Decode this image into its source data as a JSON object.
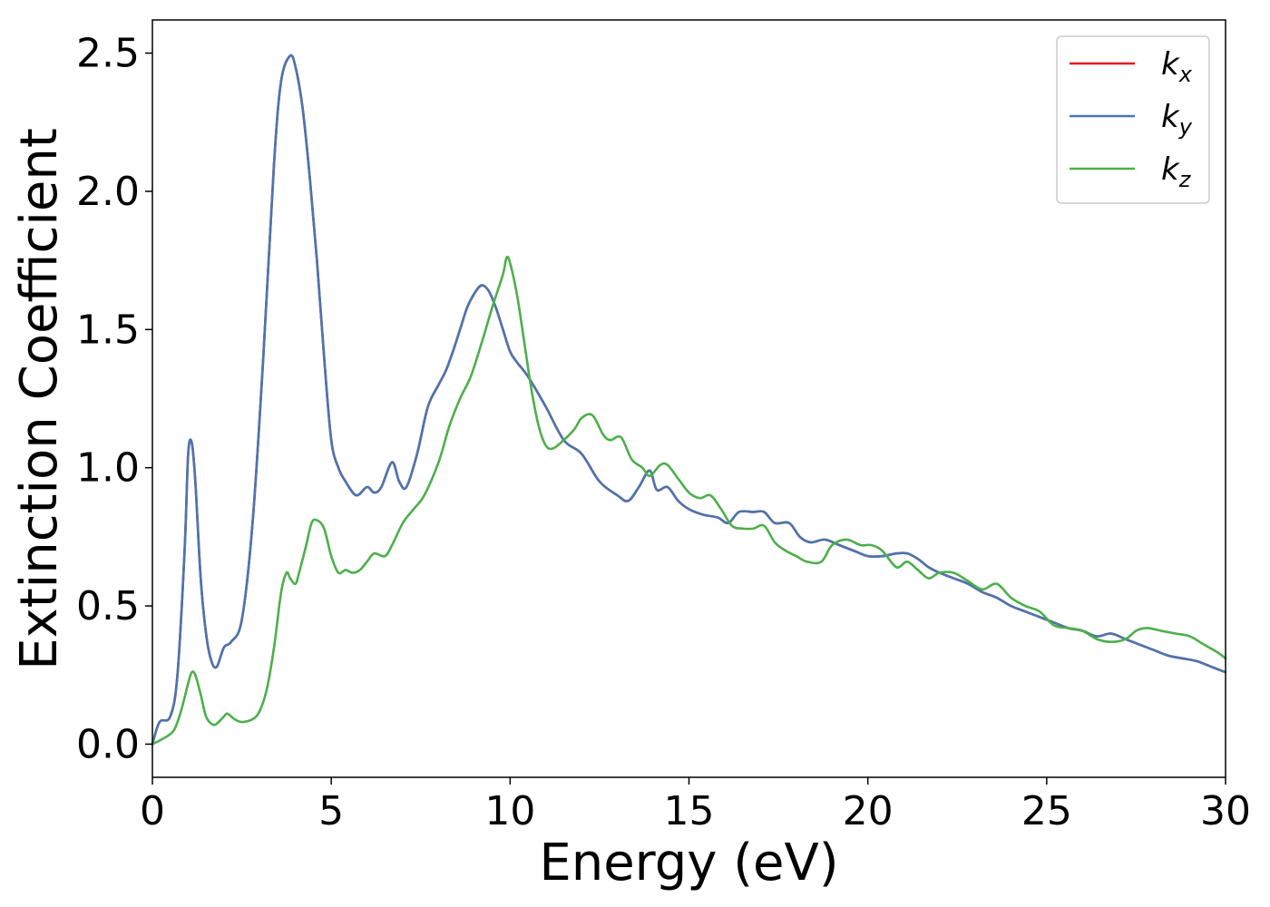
{
  "chart_data": {
    "type": "line",
    "title": "",
    "xlabel": "Energy (eV)",
    "ylabel": "Extinction Coefficient",
    "xlim": [
      0,
      30
    ],
    "ylim": [
      -0.12,
      2.62
    ],
    "xticks": [
      0,
      5,
      10,
      15,
      20,
      25,
      30
    ],
    "xtick_labels": [
      "0",
      "5",
      "10",
      "15",
      "20",
      "25",
      "30"
    ],
    "yticks": [
      0.0,
      0.5,
      1.0,
      1.5,
      2.0,
      2.5
    ],
    "ytick_labels": [
      "0.0",
      "0.5",
      "1.0",
      "1.5",
      "2.0",
      "2.5"
    ],
    "grid": false,
    "legend_position": "top-right",
    "series": [
      {
        "name": "k_x",
        "label_base": "k",
        "label_sub": "x",
        "color": "#e41a1c",
        "x": [
          0,
          0.2,
          0.5,
          0.7,
          0.9,
          1.0,
          1.1,
          1.2,
          1.35,
          1.5,
          1.65,
          1.8,
          2.0,
          2.2,
          2.5,
          2.8,
          3.1,
          3.4,
          3.6,
          3.85,
          4.0,
          4.2,
          4.4,
          4.6,
          4.8,
          5.0,
          5.2,
          5.4,
          5.7,
          6.0,
          6.2,
          6.4,
          6.7,
          6.9,
          7.1,
          7.4,
          7.7,
          8.0,
          8.2,
          8.4,
          8.6,
          8.8,
          9.0,
          9.2,
          9.4,
          9.6,
          9.8,
          10.0,
          10.2,
          10.5,
          11.0,
          11.5,
          12.0,
          12.5,
          13.0,
          13.3,
          13.6,
          13.9,
          14.1,
          14.4,
          14.7,
          15.0,
          15.4,
          15.8,
          16.1,
          16.4,
          16.8,
          17.1,
          17.4,
          17.8,
          18.1,
          18.4,
          18.8,
          19.2,
          19.6,
          20.0,
          20.4,
          20.8,
          21.1,
          21.4,
          21.7,
          22.0,
          22.4,
          22.8,
          23.2,
          23.6,
          24.0,
          24.4,
          24.8,
          25.2,
          25.6,
          26.0,
          26.4,
          26.8,
          27.2,
          27.6,
          28.0,
          28.4,
          28.8,
          29.2,
          29.6,
          30.0
        ],
        "y": [
          0.0,
          0.08,
          0.1,
          0.25,
          0.7,
          1.05,
          1.09,
          0.95,
          0.6,
          0.4,
          0.3,
          0.28,
          0.35,
          0.37,
          0.45,
          0.8,
          1.4,
          2.1,
          2.4,
          2.49,
          2.45,
          2.3,
          2.05,
          1.75,
          1.4,
          1.1,
          1.0,
          0.95,
          0.9,
          0.93,
          0.91,
          0.93,
          1.02,
          0.95,
          0.93,
          1.05,
          1.22,
          1.3,
          1.35,
          1.42,
          1.5,
          1.58,
          1.63,
          1.66,
          1.64,
          1.58,
          1.5,
          1.42,
          1.38,
          1.33,
          1.22,
          1.1,
          1.05,
          0.95,
          0.9,
          0.88,
          0.93,
          0.99,
          0.92,
          0.93,
          0.88,
          0.85,
          0.83,
          0.82,
          0.8,
          0.84,
          0.84,
          0.84,
          0.8,
          0.8,
          0.75,
          0.73,
          0.74,
          0.72,
          0.7,
          0.68,
          0.68,
          0.69,
          0.69,
          0.67,
          0.64,
          0.62,
          0.6,
          0.58,
          0.55,
          0.53,
          0.5,
          0.48,
          0.46,
          0.44,
          0.42,
          0.41,
          0.39,
          0.4,
          0.38,
          0.36,
          0.34,
          0.32,
          0.31,
          0.3,
          0.28,
          0.26
        ]
      },
      {
        "name": "k_y",
        "label_base": "k",
        "label_sub": "y",
        "color": "#4a76af",
        "x": [
          0,
          0.2,
          0.5,
          0.7,
          0.9,
          1.0,
          1.1,
          1.2,
          1.35,
          1.5,
          1.65,
          1.8,
          2.0,
          2.2,
          2.5,
          2.8,
          3.1,
          3.4,
          3.6,
          3.85,
          4.0,
          4.2,
          4.4,
          4.6,
          4.8,
          5.0,
          5.2,
          5.4,
          5.7,
          6.0,
          6.2,
          6.4,
          6.7,
          6.9,
          7.1,
          7.4,
          7.7,
          8.0,
          8.2,
          8.4,
          8.6,
          8.8,
          9.0,
          9.2,
          9.4,
          9.6,
          9.8,
          10.0,
          10.2,
          10.5,
          11.0,
          11.5,
          12.0,
          12.5,
          13.0,
          13.3,
          13.6,
          13.9,
          14.1,
          14.4,
          14.7,
          15.0,
          15.4,
          15.8,
          16.1,
          16.4,
          16.8,
          17.1,
          17.4,
          17.8,
          18.1,
          18.4,
          18.8,
          19.2,
          19.6,
          20.0,
          20.4,
          20.8,
          21.1,
          21.4,
          21.7,
          22.0,
          22.4,
          22.8,
          23.2,
          23.6,
          24.0,
          24.4,
          24.8,
          25.2,
          25.6,
          26.0,
          26.4,
          26.8,
          27.2,
          27.6,
          28.0,
          28.4,
          28.8,
          29.2,
          29.6,
          30.0
        ],
        "y": [
          0.0,
          0.08,
          0.1,
          0.25,
          0.7,
          1.05,
          1.09,
          0.95,
          0.6,
          0.4,
          0.3,
          0.28,
          0.35,
          0.37,
          0.45,
          0.8,
          1.4,
          2.1,
          2.4,
          2.49,
          2.45,
          2.3,
          2.05,
          1.75,
          1.4,
          1.1,
          1.0,
          0.95,
          0.9,
          0.93,
          0.91,
          0.93,
          1.02,
          0.95,
          0.93,
          1.05,
          1.22,
          1.3,
          1.35,
          1.42,
          1.5,
          1.58,
          1.63,
          1.66,
          1.64,
          1.58,
          1.5,
          1.42,
          1.38,
          1.33,
          1.22,
          1.1,
          1.05,
          0.95,
          0.9,
          0.88,
          0.93,
          0.99,
          0.92,
          0.93,
          0.88,
          0.85,
          0.83,
          0.82,
          0.8,
          0.84,
          0.84,
          0.84,
          0.8,
          0.8,
          0.75,
          0.73,
          0.74,
          0.72,
          0.7,
          0.68,
          0.68,
          0.69,
          0.69,
          0.67,
          0.64,
          0.62,
          0.6,
          0.58,
          0.55,
          0.53,
          0.5,
          0.48,
          0.46,
          0.44,
          0.42,
          0.41,
          0.39,
          0.4,
          0.38,
          0.36,
          0.34,
          0.32,
          0.31,
          0.3,
          0.28,
          0.26
        ]
      },
      {
        "name": "k_z",
        "label_base": "k",
        "label_sub": "z",
        "color": "#4daf4a",
        "x": [
          0,
          0.3,
          0.6,
          0.8,
          1.0,
          1.1,
          1.2,
          1.35,
          1.5,
          1.7,
          1.85,
          2.0,
          2.1,
          2.3,
          2.5,
          2.8,
          3.0,
          3.2,
          3.4,
          3.6,
          3.75,
          3.85,
          4.0,
          4.1,
          4.3,
          4.45,
          4.6,
          4.8,
          5.0,
          5.2,
          5.4,
          5.6,
          5.8,
          6.0,
          6.2,
          6.5,
          6.7,
          7.0,
          7.3,
          7.6,
          8.0,
          8.3,
          8.6,
          8.9,
          9.2,
          9.5,
          9.8,
          9.9,
          10.0,
          10.2,
          10.4,
          10.6,
          10.8,
          11.0,
          11.2,
          11.5,
          11.8,
          12.0,
          12.3,
          12.6,
          12.8,
          13.1,
          13.4,
          13.7,
          13.9,
          14.2,
          14.4,
          14.7,
          15.0,
          15.3,
          15.6,
          15.9,
          16.2,
          16.5,
          16.8,
          17.1,
          17.4,
          17.7,
          18.0,
          18.3,
          18.7,
          19.0,
          19.4,
          19.8,
          20.1,
          20.4,
          20.8,
          21.1,
          21.4,
          21.7,
          22.0,
          22.4,
          22.8,
          23.2,
          23.6,
          24.0,
          24.4,
          24.8,
          25.2,
          25.6,
          26.0,
          26.4,
          26.8,
          27.2,
          27.5,
          27.8,
          28.2,
          28.6,
          29.0,
          29.4,
          29.8,
          30.0
        ],
        "y": [
          0.0,
          0.02,
          0.05,
          0.12,
          0.22,
          0.26,
          0.25,
          0.18,
          0.1,
          0.07,
          0.08,
          0.1,
          0.11,
          0.09,
          0.08,
          0.09,
          0.12,
          0.2,
          0.35,
          0.55,
          0.62,
          0.6,
          0.58,
          0.62,
          0.72,
          0.8,
          0.81,
          0.78,
          0.68,
          0.62,
          0.63,
          0.62,
          0.63,
          0.66,
          0.69,
          0.68,
          0.72,
          0.8,
          0.85,
          0.9,
          1.02,
          1.15,
          1.25,
          1.33,
          1.45,
          1.58,
          1.7,
          1.76,
          1.74,
          1.62,
          1.45,
          1.28,
          1.15,
          1.08,
          1.07,
          1.1,
          1.14,
          1.18,
          1.19,
          1.12,
          1.1,
          1.11,
          1.03,
          1.0,
          0.97,
          1.01,
          1.01,
          0.96,
          0.91,
          0.89,
          0.9,
          0.85,
          0.79,
          0.78,
          0.78,
          0.79,
          0.73,
          0.7,
          0.68,
          0.66,
          0.66,
          0.72,
          0.74,
          0.72,
          0.72,
          0.7,
          0.64,
          0.66,
          0.63,
          0.6,
          0.62,
          0.62,
          0.59,
          0.56,
          0.58,
          0.53,
          0.5,
          0.48,
          0.43,
          0.42,
          0.41,
          0.38,
          0.37,
          0.38,
          0.41,
          0.42,
          0.41,
          0.4,
          0.39,
          0.36,
          0.33,
          0.31
        ]
      }
    ]
  }
}
